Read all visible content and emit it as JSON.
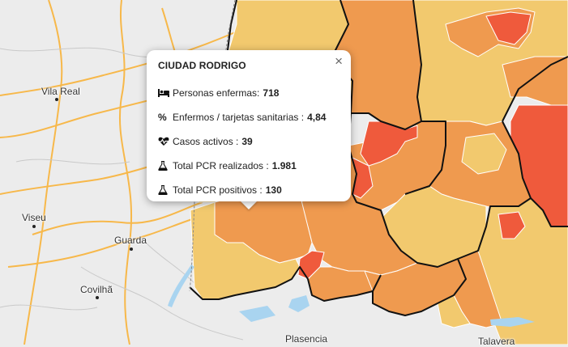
{
  "map": {
    "cities": [
      {
        "id": "vila-real",
        "name": "Vila Real"
      },
      {
        "id": "viseu",
        "name": "Viseu"
      },
      {
        "id": "guarda",
        "name": "Guarda"
      },
      {
        "id": "covilha",
        "name": "Covilhã"
      },
      {
        "id": "plasencia",
        "name": "Plasencia"
      },
      {
        "id": "talavera",
        "name": "Talavera"
      }
    ],
    "colors": {
      "land": "#ececec",
      "water": "#a9d4f0",
      "road": "#f7b84a",
      "low": "#f2c96e",
      "medium": "#ef9a4f",
      "high": "#ef5a3c",
      "border": "#111111"
    }
  },
  "popup": {
    "title": "CIUDAD RODRIGO",
    "close_icon": "×",
    "rows": [
      {
        "icon": "bed-icon",
        "label": "Personas enfermas:",
        "value": "718"
      },
      {
        "icon": "percent-icon",
        "label": "Enfermos / tarjetas sanitarias :",
        "value": "4,84"
      },
      {
        "icon": "heartbeat-icon",
        "label": "Casos activos :",
        "value": "39"
      },
      {
        "icon": "flask-icon",
        "label": "Total PCR realizados :",
        "value": "1.981"
      },
      {
        "icon": "flask-icon",
        "label": "Total PCR positivos :",
        "value": "130"
      }
    ]
  }
}
